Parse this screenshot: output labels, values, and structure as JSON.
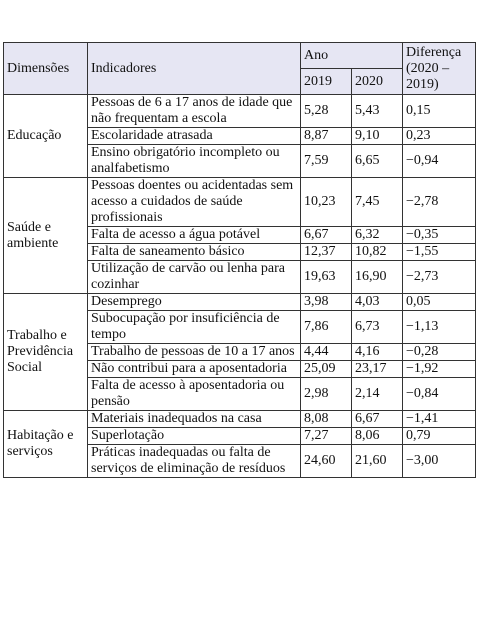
{
  "table": {
    "header": {
      "dimensions": "Dimensões",
      "indicators": "Indicadores",
      "year": "Ano",
      "y2019": "2019",
      "y2020": "2020",
      "difference": "Diferença (2020 – 2019)"
    },
    "groups": [
      {
        "dimension": "Educação",
        "rows": [
          [
            "Pessoas de 6 a 17 anos de idade que não frequentam a escola",
            "5,28",
            "5,43",
            "0,15"
          ],
          [
            "Escolaridade atrasada",
            "8,87",
            "9,10",
            "0,23"
          ],
          [
            "Ensino obrigatório incompleto ou analfabetismo",
            "7,59",
            "6,65",
            "−0,94"
          ]
        ]
      },
      {
        "dimension": "Saúde e ambiente",
        "rows": [
          [
            "Pessoas doentes ou acidentadas sem acesso a cuidados de saúde profissionais",
            "10,23",
            "7,45",
            "−2,78"
          ],
          [
            "Falta de acesso a água potável",
            "6,67",
            "6,32",
            "−0,35"
          ],
          [
            "Falta de saneamento básico",
            "12,37",
            "10,82",
            "−1,55"
          ],
          [
            "Utilização de carvão ou lenha para cozinhar",
            "19,63",
            "16,90",
            "−2,73"
          ]
        ]
      },
      {
        "dimension": "Trabalho e Previdência Social",
        "rows": [
          [
            "Desemprego",
            "3,98",
            "4,03",
            "0,05"
          ],
          [
            "Subocupação por insuficiência de tempo",
            "7,86",
            "6,73",
            "−1,13"
          ],
          [
            "Trabalho de pessoas de 10 a 17 anos",
            "4,44",
            "4,16",
            "−0,28"
          ],
          [
            "Não contribui para a aposentadoria",
            "25,09",
            "23,17",
            "−1,92"
          ],
          [
            "Falta de acesso à aposentadoria ou pensão",
            "2,98",
            "2,14",
            "−0,84"
          ]
        ]
      },
      {
        "dimension": "Habitação e serviços",
        "rows": [
          [
            "Materiais inadequados na casa",
            "8,08",
            "6,67",
            "−1,41"
          ],
          [
            "Superlotação",
            "7,27",
            "8,06",
            "0,79"
          ],
          [
            "Práticas inadequadas ou falta de serviços de eliminação de resíduos",
            "24,60",
            "21,60",
            "−3,00"
          ]
        ]
      }
    ]
  }
}
